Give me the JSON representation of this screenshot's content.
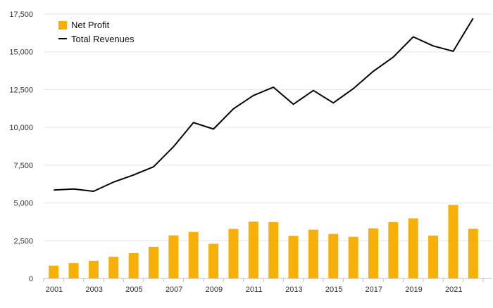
{
  "chart_data": {
    "type": "bar",
    "title": "",
    "xlabel": "",
    "ylabel": "",
    "x": [
      2001,
      2002,
      2003,
      2004,
      2005,
      2006,
      2007,
      2008,
      2009,
      2010,
      2011,
      2012,
      2013,
      2014,
      2015,
      2016,
      2017,
      2018,
      2019,
      2020,
      2021,
      2022
    ],
    "x_tick_labels": [
      "2001",
      "2003",
      "2005",
      "2007",
      "2009",
      "2011",
      "2013",
      "2015",
      "2017",
      "2019",
      "2021"
    ],
    "y_ticks": [
      0,
      2500,
      5000,
      7500,
      10000,
      12500,
      15000,
      17500
    ],
    "y_tick_labels": [
      "0",
      "2,500",
      "5,000",
      "7,500",
      "10,000",
      "12,500",
      "15,000",
      "17,500"
    ],
    "ylim": [
      0,
      17500
    ],
    "grid": true,
    "legend_position": "top-left",
    "series": [
      {
        "name": "Net Profit",
        "type": "bar",
        "color": "#F7B008",
        "values": [
          850,
          1020,
          1170,
          1440,
          1680,
          2100,
          2850,
          3080,
          2300,
          3280,
          3760,
          3730,
          2820,
          3230,
          2950,
          2760,
          3320,
          3730,
          3980,
          2840,
          4870,
          3290
        ]
      },
      {
        "name": "Total Revenues",
        "type": "line",
        "color": "#000000",
        "values": [
          5850,
          5920,
          5770,
          6380,
          6850,
          7390,
          8720,
          10320,
          9890,
          11230,
          12110,
          12660,
          11530,
          12440,
          11620,
          12560,
          13710,
          14650,
          15990,
          15390,
          15040,
          17220
        ]
      }
    ]
  }
}
